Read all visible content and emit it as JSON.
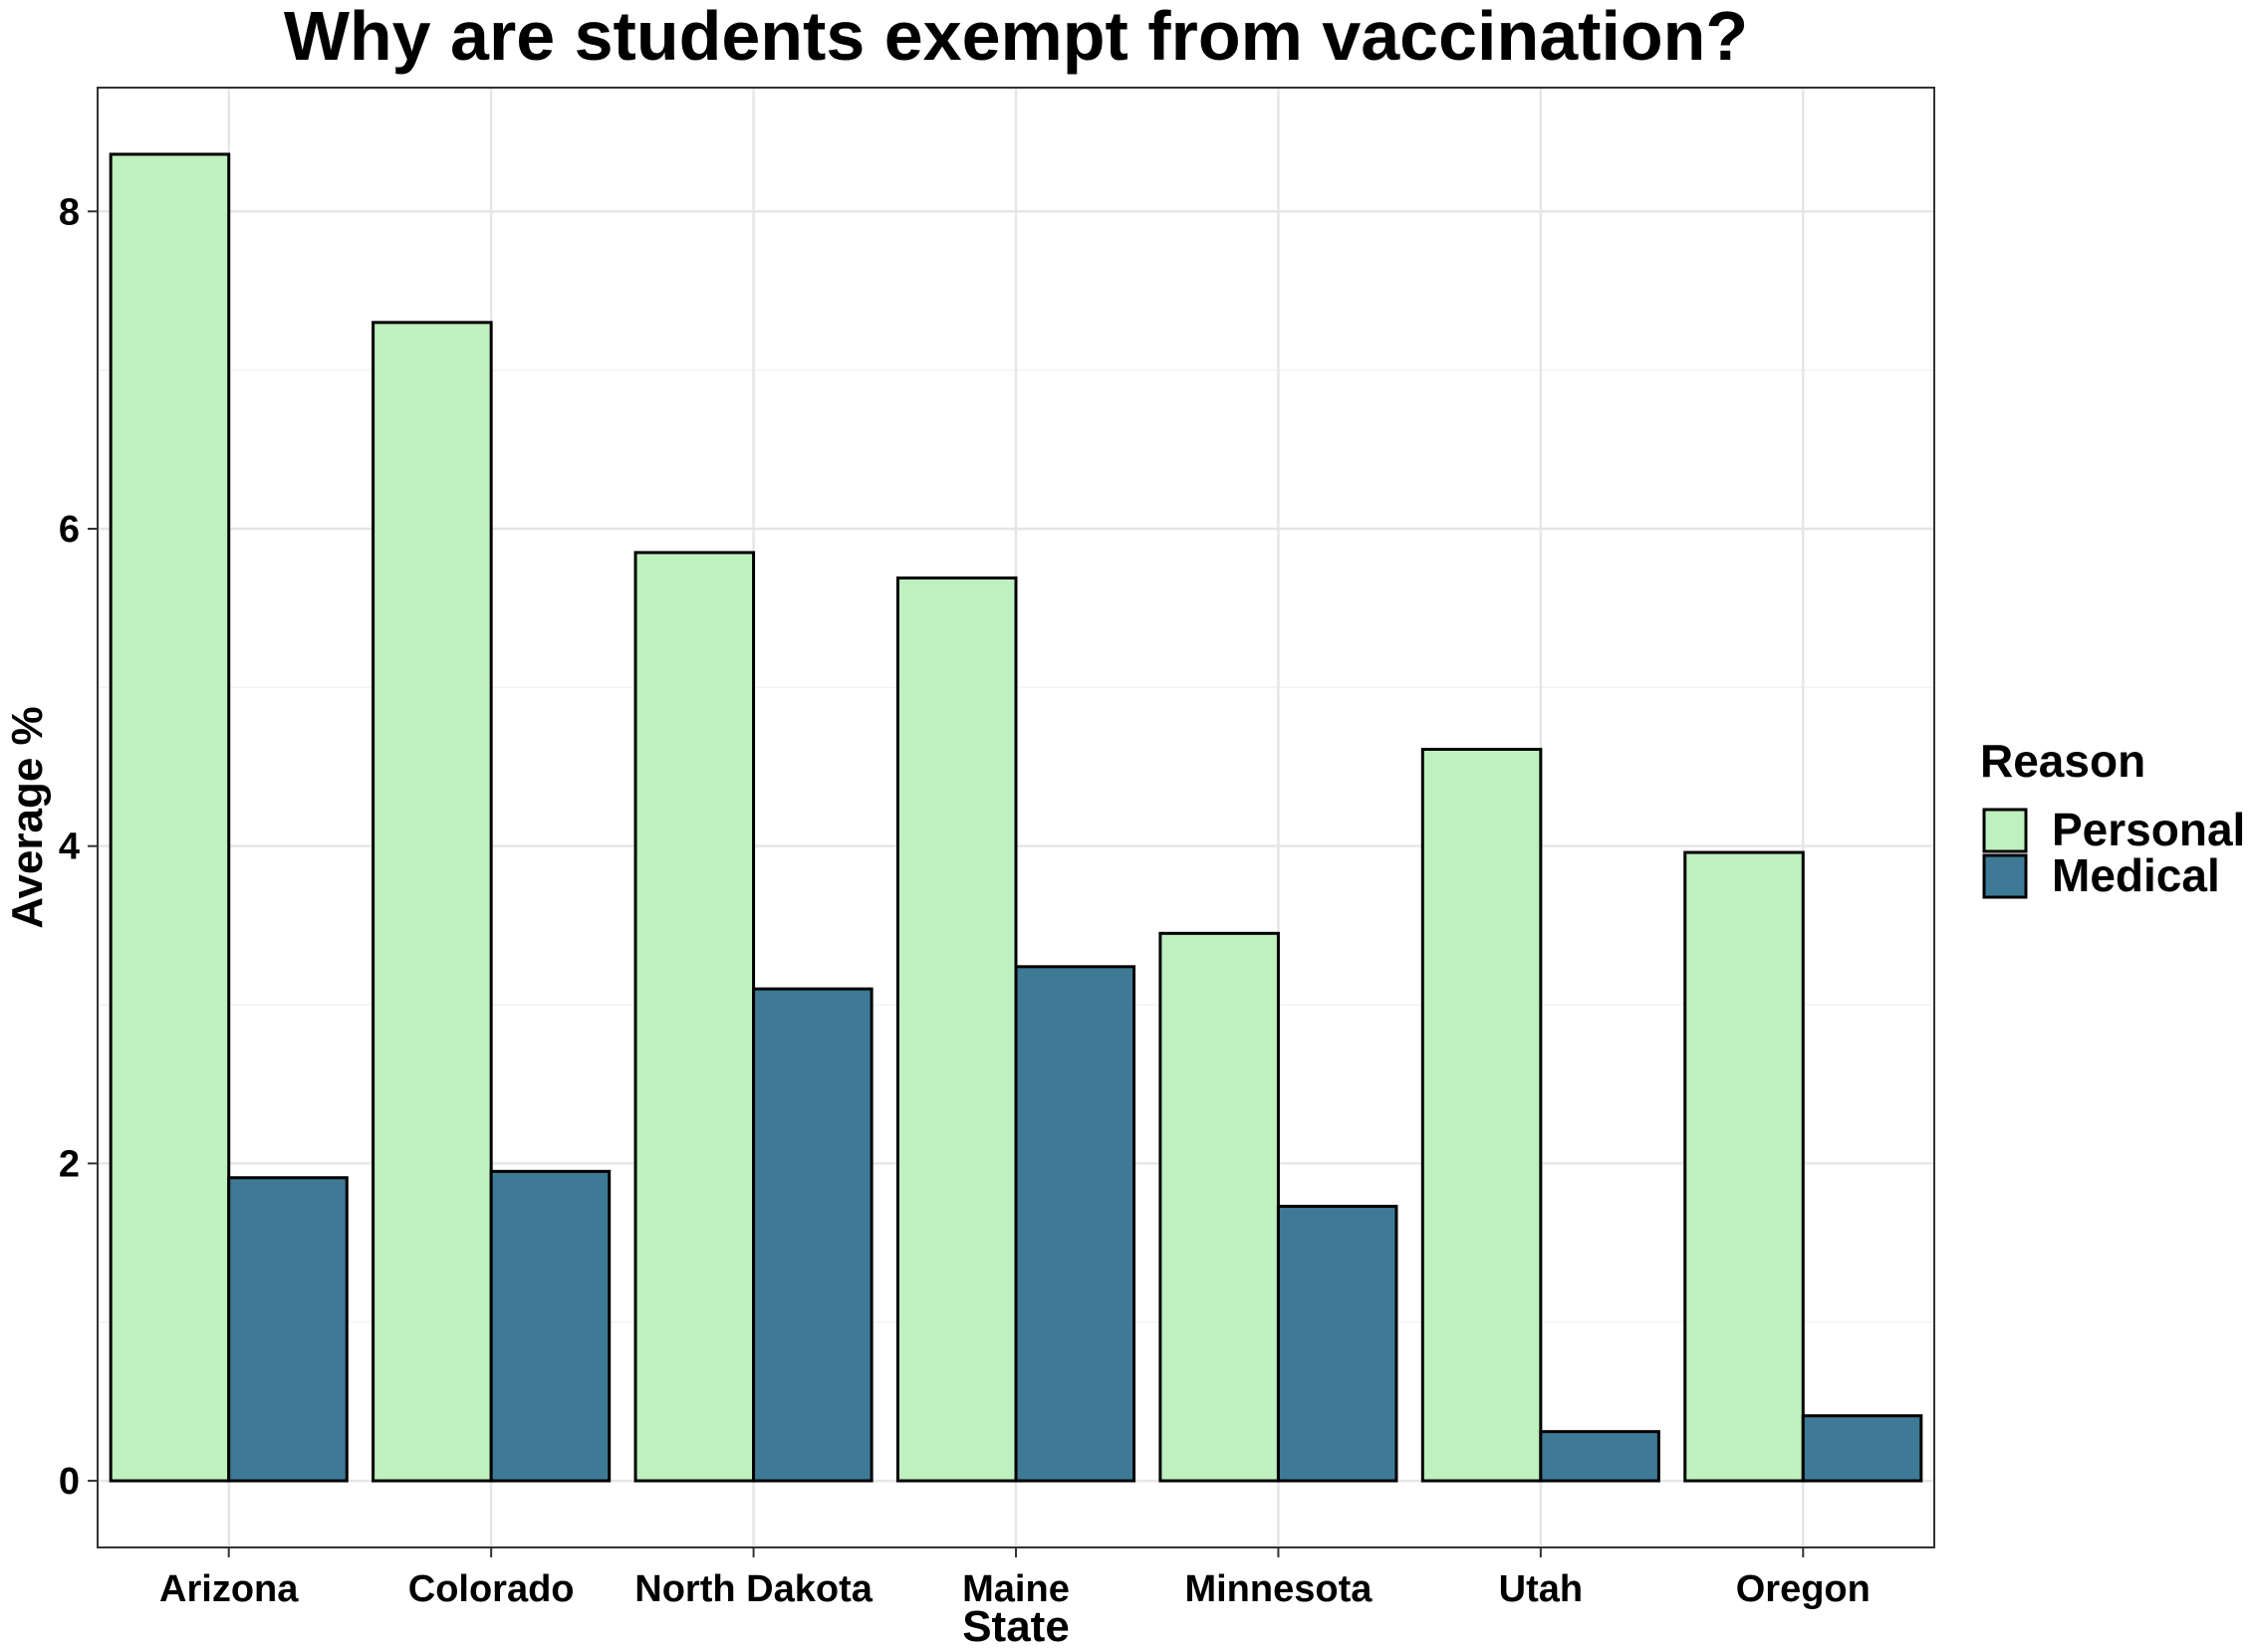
{
  "chart_data": {
    "type": "bar",
    "title": "Why are students exempt from vaccination?",
    "xlabel": "State",
    "ylabel": "Average %",
    "categories": [
      "Arizona",
      "Colorado",
      "North Dakota",
      "Maine",
      "Minnesota",
      "Utah",
      "Oregon"
    ],
    "series": [
      {
        "name": "Personal",
        "color": "#bff0bf",
        "values": [
          8.36,
          7.3,
          5.85,
          5.69,
          3.45,
          4.61,
          3.96
        ]
      },
      {
        "name": "Medical",
        "color": "#3e7a96",
        "values": [
          1.91,
          1.95,
          3.1,
          3.24,
          1.73,
          0.31,
          0.41
        ]
      }
    ],
    "ylim": [
      -0.42,
      8.78
    ],
    "yticks": [
      0,
      2,
      4,
      6,
      8
    ],
    "grid": true,
    "legend": {
      "title": "Reason",
      "position": "right"
    }
  }
}
